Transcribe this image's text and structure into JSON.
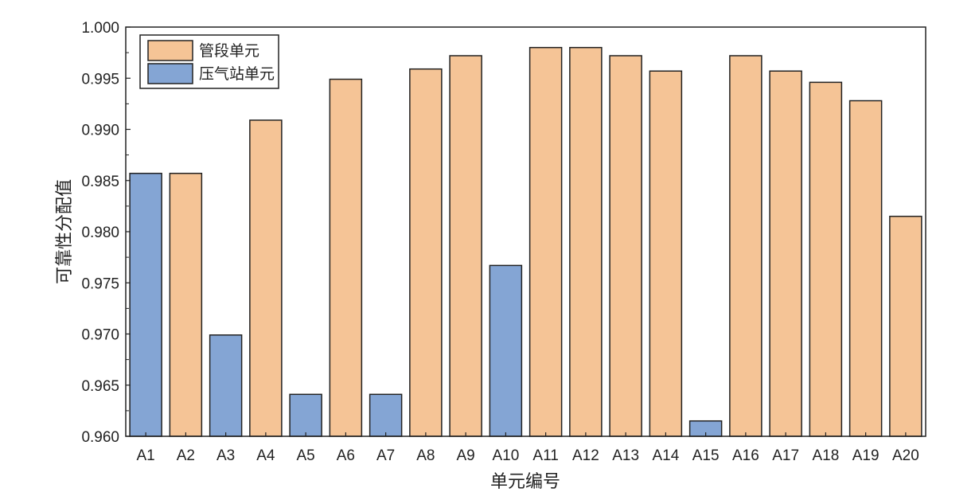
{
  "chart_data": {
    "type": "bar",
    "title": "",
    "xlabel": "单元编号",
    "ylabel": "可靠性分配值",
    "ylim": [
      0.96,
      1.0
    ],
    "yticks": [
      "0.960",
      "0.965",
      "0.970",
      "0.975",
      "0.980",
      "0.985",
      "0.990",
      "0.995",
      "1.000"
    ],
    "ytick_values": [
      0.96,
      0.965,
      0.97,
      0.975,
      0.98,
      0.985,
      0.99,
      0.995,
      1.0
    ],
    "categories": [
      "A1",
      "A2",
      "A3",
      "A4",
      "A5",
      "A6",
      "A7",
      "A8",
      "A9",
      "A10",
      "A11",
      "A12",
      "A13",
      "A14",
      "A15",
      "A16",
      "A17",
      "A18",
      "A19",
      "A20"
    ],
    "values": [
      0.9857,
      0.9857,
      0.9699,
      0.9909,
      0.9641,
      0.9949,
      0.9641,
      0.9959,
      0.9972,
      0.9767,
      0.998,
      0.998,
      0.9972,
      0.9957,
      0.9615,
      0.9972,
      0.9957,
      0.9946,
      0.9928,
      0.9815
    ],
    "types": [
      "station",
      "pipe",
      "station",
      "pipe",
      "station",
      "pipe",
      "station",
      "pipe",
      "pipe",
      "station",
      "pipe",
      "pipe",
      "pipe",
      "pipe",
      "station",
      "pipe",
      "pipe",
      "pipe",
      "pipe",
      "pipe"
    ],
    "legend": {
      "position": "top-left",
      "entries": [
        {
          "key": "pipe",
          "label": "管段单元",
          "color": "#f5c496"
        },
        {
          "key": "station",
          "label": "压气站单元",
          "color": "#84a5d4"
        }
      ]
    },
    "grid": false
  }
}
